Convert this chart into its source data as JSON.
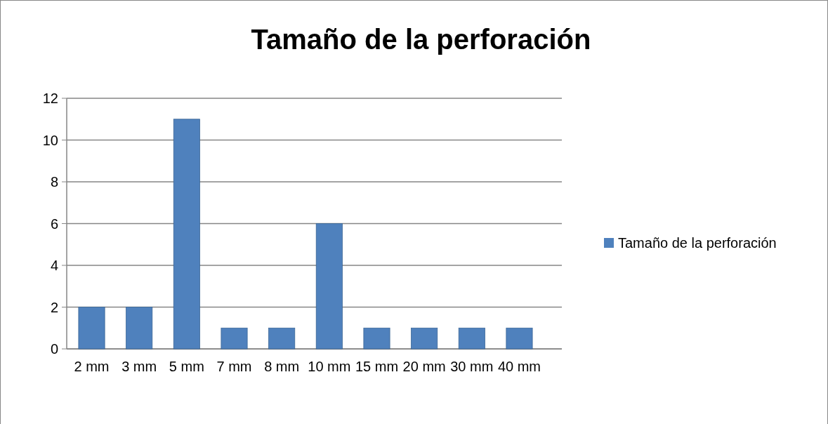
{
  "chart_data": {
    "type": "bar",
    "title": "Tamaño de la perforación",
    "categories": [
      "2 mm",
      "3 mm",
      "5 mm",
      "7 mm",
      "8 mm",
      "10 mm",
      "15 mm",
      "20 mm",
      "30 mm",
      "40 mm"
    ],
    "series": [
      {
        "name": "Tamaño de la perforación",
        "color": "#4f81bd",
        "values": [
          2,
          2,
          11,
          1,
          1,
          6,
          1,
          1,
          1,
          1
        ]
      }
    ],
    "ylim": [
      0,
      12
    ],
    "yticks": [
      0,
      2,
      4,
      6,
      8,
      10,
      12
    ],
    "grid": "y",
    "legend": "right"
  }
}
